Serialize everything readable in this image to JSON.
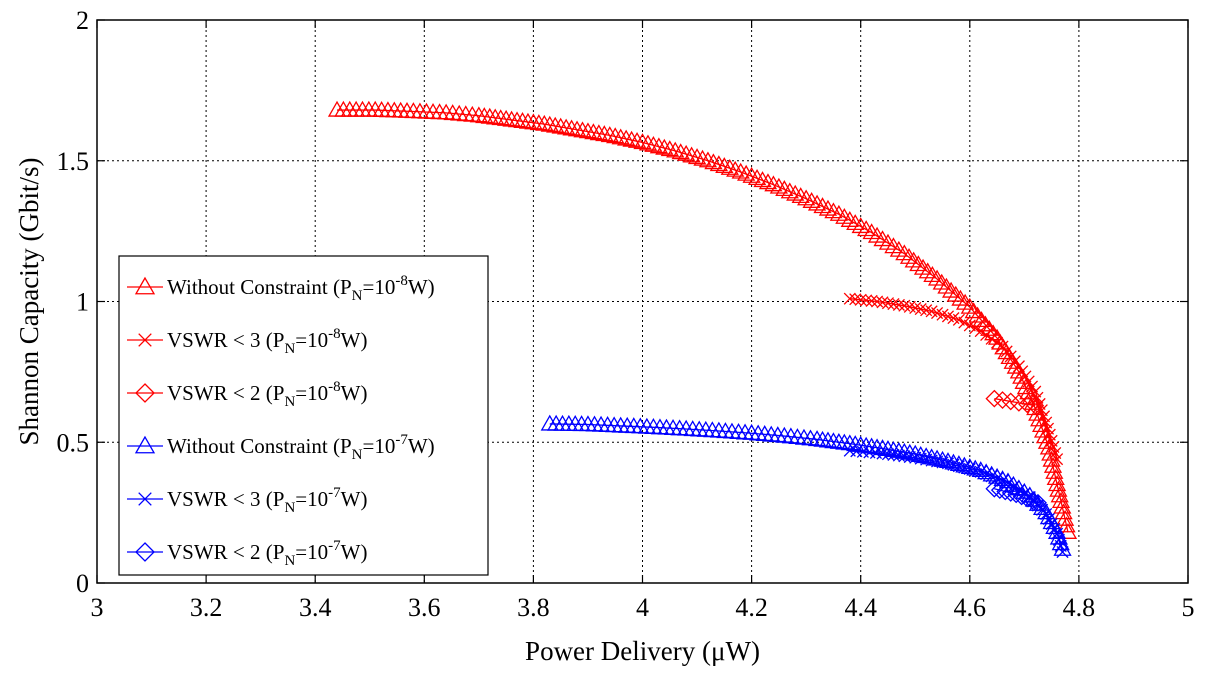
{
  "chart_data": {
    "type": "line",
    "xlabel": "Power Delivery (μW)",
    "ylabel": "Shannon Capacity (Gbit/s)",
    "xlim": [
      3,
      5
    ],
    "ylim": [
      0,
      2
    ],
    "xticks": [
      "3",
      "3.2",
      "3.4",
      "3.6",
      "3.8",
      "4",
      "4.2",
      "4.4",
      "4.6",
      "4.8",
      "5"
    ],
    "yticks": [
      "0",
      "0.5",
      "1",
      "1.5",
      "2"
    ],
    "grid": true,
    "legend_position": "lower-left",
    "series": [
      {
        "name": "Without Constraint (P_N=10^-8 W)",
        "label_main": "Without Constraint (P",
        "label_sub": "N",
        "label_mid": "=10",
        "label_sup": "-8",
        "label_end": "W)",
        "color": "#ff0000",
        "marker": "triangle",
        "x": [
          3.44,
          3.51,
          3.58,
          3.64,
          3.7,
          3.76,
          3.82,
          3.88,
          3.94,
          4.0,
          4.06,
          4.12,
          4.18,
          4.24,
          4.3,
          4.36,
          4.42,
          4.48,
          4.54,
          4.6,
          4.65,
          4.69,
          4.72,
          4.745,
          4.76,
          4.772,
          4.78
        ],
        "y": [
          1.68,
          1.68,
          1.675,
          1.67,
          1.66,
          1.645,
          1.63,
          1.61,
          1.59,
          1.565,
          1.535,
          1.5,
          1.46,
          1.415,
          1.365,
          1.31,
          1.245,
          1.17,
          1.08,
          0.98,
          0.87,
          0.75,
          0.62,
          0.48,
          0.35,
          0.25,
          0.18
        ]
      },
      {
        "name": "VSWR < 3 (P_N=10^-8 W)",
        "label_main": "VSWR < 3 (P",
        "label_sub": "N",
        "label_mid": "=10",
        "label_sup": "-8",
        "label_end": "W)",
        "color": "#ff0000",
        "marker": "x",
        "x": [
          4.38,
          4.43,
          4.48,
          4.53,
          4.58,
          4.62,
          4.66,
          4.69,
          4.72,
          4.74,
          4.76
        ],
        "y": [
          1.01,
          1.0,
          0.985,
          0.965,
          0.935,
          0.895,
          0.84,
          0.77,
          0.68,
          0.57,
          0.44
        ]
      },
      {
        "name": "VSWR < 2 (P_N=10^-8 W)",
        "label_main": "VSWR < 2 (P",
        "label_sub": "N",
        "label_mid": "=10",
        "label_sup": "-8",
        "label_end": "W)",
        "color": "#ff0000",
        "marker": "diamond",
        "x": [
          4.645,
          4.66,
          4.675,
          4.69,
          4.705,
          4.72
        ],
        "y": [
          0.655,
          0.65,
          0.645,
          0.64,
          0.635,
          0.63
        ]
      },
      {
        "name": "Without Constraint (P_N=10^-7 W)",
        "label_main": "Without Constraint (P",
        "label_sub": "N",
        "label_mid": "=10",
        "label_sup": "-7",
        "label_end": "W)",
        "color": "#0000ff",
        "marker": "triangle",
        "x": [
          3.83,
          3.9,
          3.96,
          4.02,
          4.08,
          4.14,
          4.2,
          4.26,
          4.32,
          4.38,
          4.44,
          4.5,
          4.56,
          4.62,
          4.67,
          4.71,
          4.74,
          4.76,
          4.77
        ],
        "y": [
          0.565,
          0.563,
          0.558,
          0.553,
          0.547,
          0.54,
          0.532,
          0.522,
          0.51,
          0.495,
          0.478,
          0.458,
          0.432,
          0.4,
          0.36,
          0.31,
          0.25,
          0.18,
          0.12
        ]
      },
      {
        "name": "VSWR < 3 (P_N=10^-7 W)",
        "label_main": "VSWR < 3 (P",
        "label_sub": "N",
        "label_mid": "=10",
        "label_sup": "-7",
        "label_end": "W)",
        "color": "#0000ff",
        "marker": "x",
        "x": [
          4.38,
          4.44,
          4.5,
          4.56,
          4.62,
          4.67,
          4.71,
          4.74,
          4.76,
          4.77
        ],
        "y": [
          0.47,
          0.46,
          0.445,
          0.425,
          0.395,
          0.355,
          0.305,
          0.245,
          0.175,
          0.11
        ]
      },
      {
        "name": "VSWR < 2 (P_N=10^-7 W)",
        "label_main": "VSWR < 2 (P",
        "label_sub": "N",
        "label_mid": "=10",
        "label_sup": "-7",
        "label_end": "W)",
        "color": "#0000ff",
        "marker": "diamond",
        "x": [
          4.645,
          4.665,
          4.685,
          4.705,
          4.725
        ],
        "y": [
          0.335,
          0.325,
          0.315,
          0.3,
          0.285
        ]
      }
    ]
  }
}
